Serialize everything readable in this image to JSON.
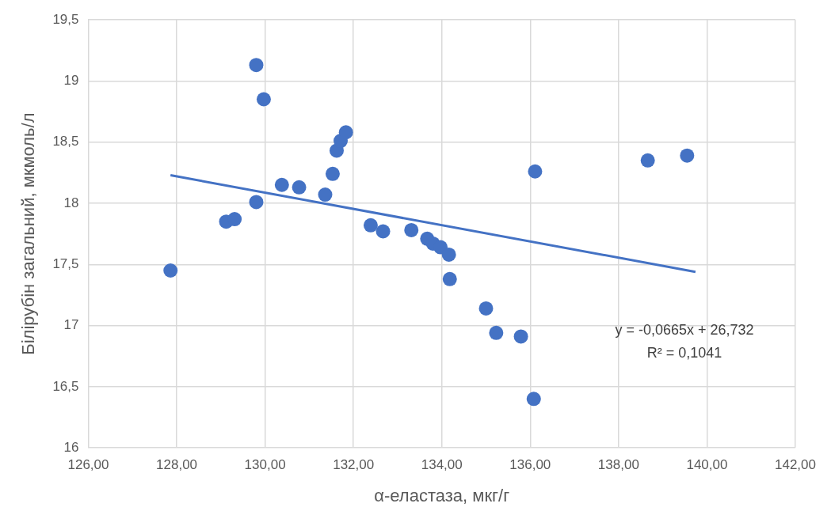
{
  "chart_data": {
    "type": "scatter",
    "xlabel": "α-еластаза, мкг/г",
    "ylabel": "Білірубін загальний, мкмоль/л",
    "xlim": [
      126,
      142
    ],
    "xticks": [
      {
        "value": 126,
        "label": "126,00"
      },
      {
        "value": 128,
        "label": "128,00"
      },
      {
        "value": 130,
        "label": "130,00"
      },
      {
        "value": 132,
        "label": "132,00"
      },
      {
        "value": 134,
        "label": "134,00"
      },
      {
        "value": 136,
        "label": "136,00"
      },
      {
        "value": 138,
        "label": "138,00"
      },
      {
        "value": 140,
        "label": "140,00"
      },
      {
        "value": 142,
        "label": "142,00"
      }
    ],
    "ylim": [
      16,
      19.5
    ],
    "yticks": [
      16,
      {
        "value": 16.5,
        "label": "16,5"
      },
      17,
      {
        "value": 17.5,
        "label": "17,5"
      },
      18,
      {
        "value": 18.5,
        "label": "18,5"
      },
      19,
      {
        "value": 19.5,
        "label": "19,5"
      }
    ],
    "grid": true,
    "legend": false,
    "marker": "circle",
    "series": [
      {
        "color": "#4472c4",
        "x": [
          127.86,
          129.8,
          129.97,
          129.12,
          129.31,
          129.8,
          130.38,
          130.77,
          131.36,
          131.53,
          131.62,
          131.71,
          131.83,
          132.39,
          132.67,
          133.31,
          133.67,
          133.8,
          133.97,
          134.16,
          134.18,
          135.0,
          135.23,
          135.79,
          136.08,
          136.11,
          138.66,
          139.55
        ],
        "values": [
          17.45,
          19.13,
          18.85,
          17.85,
          17.87,
          18.01,
          18.15,
          18.13,
          18.07,
          18.24,
          18.43,
          18.51,
          18.58,
          17.82,
          17.77,
          17.78,
          17.71,
          17.67,
          17.64,
          17.58,
          17.38,
          17.14,
          16.94,
          16.91,
          16.4,
          18.26,
          18.35,
          18.39
        ]
      },
      {
        "type": "line",
        "color": "#4472c4",
        "marker": "none",
        "x": [
          127.86,
          139.74
        ],
        "values": [
          18.229,
          17.439
        ]
      }
    ],
    "annotations": [
      "y = -0,0665x + 26,732",
      "R² = 0,1041"
    ]
  }
}
